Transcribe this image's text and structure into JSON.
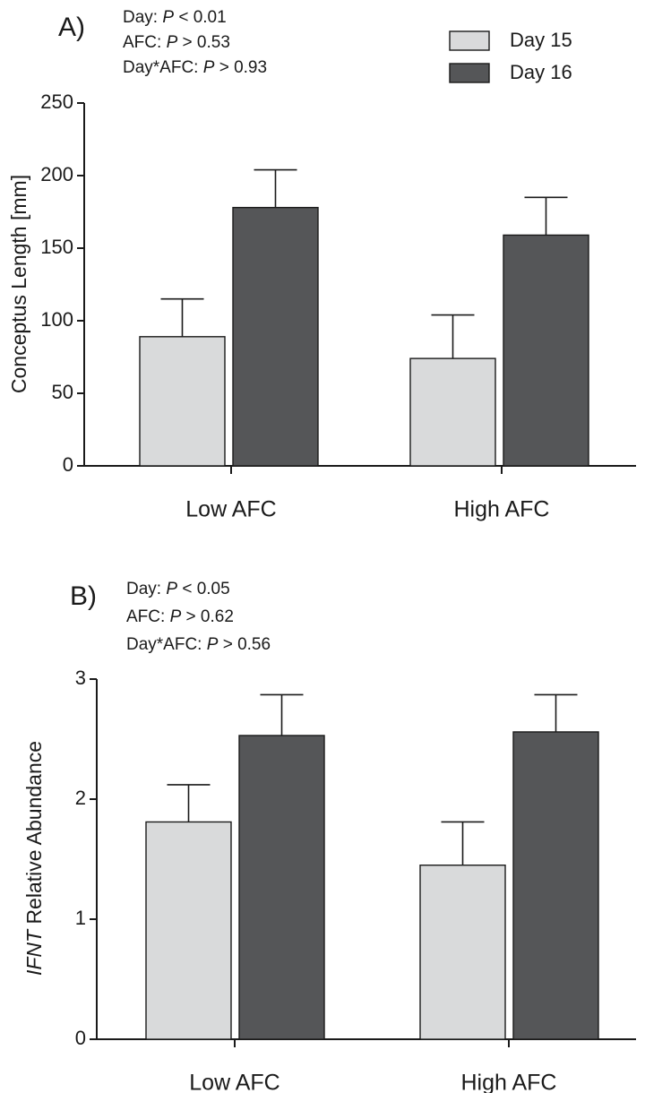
{
  "legend": {
    "items": [
      {
        "label": "Day 15",
        "color": "#d9dadb"
      },
      {
        "label": "Day 16",
        "color": "#555658"
      }
    ]
  },
  "chart_data": [
    {
      "type": "bar",
      "panel_label": "A)",
      "stats": [
        {
          "prefix": "Day: ",
          "p": "P",
          "suffix": " < 0.01"
        },
        {
          "prefix": "AFC: ",
          "p": "P",
          "suffix": " > 0.53"
        },
        {
          "prefix": "Day*AFC: ",
          "p": "P",
          "suffix": " > 0.93"
        }
      ],
      "ylabel_parts": [
        {
          "text": "Conceptus Length [mm]",
          "italic": false
        }
      ],
      "ylim": [
        0,
        250
      ],
      "yticks": [
        0,
        50,
        100,
        150,
        200,
        250
      ],
      "categories": [
        "Low AFC",
        "High AFC"
      ],
      "series": [
        {
          "name": "Day 15",
          "values": [
            89,
            74
          ],
          "errors": [
            26,
            30
          ]
        },
        {
          "name": "Day 16",
          "values": [
            178,
            159
          ],
          "errors": [
            26,
            26
          ]
        }
      ]
    },
    {
      "type": "bar",
      "panel_label": "B)",
      "stats": [
        {
          "prefix": "Day: ",
          "p": "P",
          "suffix": " < 0.05"
        },
        {
          "prefix": "AFC: ",
          "p": "P",
          "suffix": " > 0.62"
        },
        {
          "prefix": "Day*AFC: ",
          "p": "P",
          "suffix": " > 0.56"
        }
      ],
      "ylabel_parts": [
        {
          "text": "IFNT",
          "italic": true
        },
        {
          "text": " Relative Abundance",
          "italic": false
        }
      ],
      "ylim": [
        0,
        3
      ],
      "yticks": [
        0,
        1,
        2,
        3
      ],
      "categories": [
        "Low AFC",
        "High AFC"
      ],
      "series": [
        {
          "name": "Day 15",
          "values": [
            1.81,
            1.45
          ],
          "errors": [
            0.31,
            0.36
          ]
        },
        {
          "name": "Day 16",
          "values": [
            2.53,
            2.56
          ],
          "errors": [
            0.34,
            0.31
          ]
        }
      ]
    }
  ]
}
